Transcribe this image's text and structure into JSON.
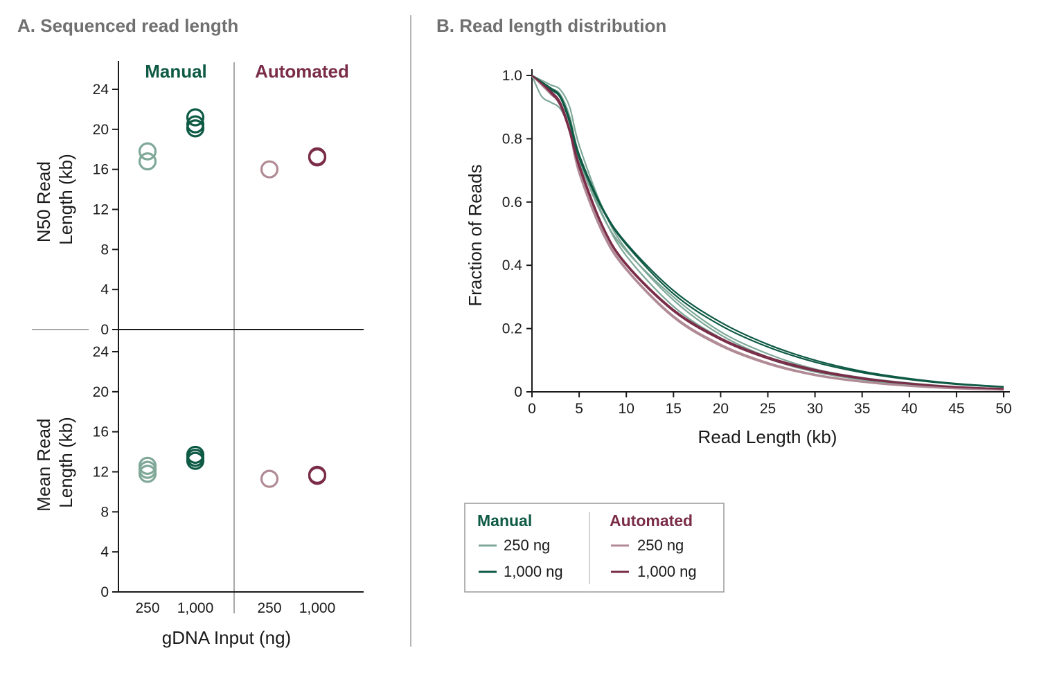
{
  "colors": {
    "manual_250": "#7fa898",
    "manual_1000": "#0e5a44",
    "auto_250": "#b08a94",
    "auto_1000": "#7a2c48",
    "manual_head": "#0e5a44",
    "auto_head": "#7a2c48",
    "panel_title": "#707070"
  },
  "chart_data": [
    {
      "type": "scatter",
      "panel_title": "A. Sequenced read length",
      "group_labels": [
        "Manual",
        "Automated"
      ],
      "x_tick_labels": [
        "250",
        "1,000",
        "250",
        "1,000"
      ],
      "xlabel": "gDNA Input (ng)",
      "subplots": [
        {
          "ylabel_lines": [
            "N50 Read",
            "Length (kb)"
          ],
          "ylim": [
            0,
            24
          ],
          "y_ticks": [
            "0",
            "4",
            "8",
            "12",
            "16",
            "20",
            "24"
          ],
          "series": [
            {
              "group": "Manual",
              "input": "250 ng",
              "x_index": 0,
              "color_key": "manual_250",
              "values": [
                17.8,
                16.8
              ]
            },
            {
              "group": "Manual",
              "input": "1,000 ng",
              "x_index": 1,
              "color_key": "manual_1000",
              "values": [
                21.2,
                20.5,
                20.1
              ]
            },
            {
              "group": "Automated",
              "input": "250 ng",
              "x_index": 2,
              "color_key": "auto_250",
              "values": [
                16.0
              ]
            },
            {
              "group": "Automated",
              "input": "1,000 ng",
              "x_index": 3,
              "color_key": "auto_1000",
              "values": [
                17.2,
                17.3
              ]
            }
          ]
        },
        {
          "ylabel_lines": [
            "Mean Read",
            "Length (kb)"
          ],
          "ylim": [
            0,
            24
          ],
          "y_ticks": [
            "0",
            "4",
            "8",
            "12",
            "16",
            "20",
            "24"
          ],
          "series": [
            {
              "group": "Manual",
              "input": "250 ng",
              "x_index": 0,
              "color_key": "manual_250",
              "values": [
                12.6,
                12.2,
                11.8
              ]
            },
            {
              "group": "Manual",
              "input": "1,000 ng",
              "x_index": 1,
              "color_key": "manual_1000",
              "values": [
                13.7,
                13.4,
                13.1
              ]
            },
            {
              "group": "Automated",
              "input": "250 ng",
              "x_index": 2,
              "color_key": "auto_250",
              "values": [
                11.3
              ]
            },
            {
              "group": "Automated",
              "input": "1,000 ng",
              "x_index": 3,
              "color_key": "auto_1000",
              "values": [
                11.7,
                11.6
              ]
            }
          ]
        }
      ]
    },
    {
      "type": "line",
      "panel_title": "B. Read length distribution",
      "xlabel": "Read Length (kb)",
      "ylabel": "Fraction of Reads",
      "xlim": [
        0,
        50
      ],
      "ylim": [
        0,
        1.0
      ],
      "x_ticks": [
        "0",
        "5",
        "10",
        "15",
        "20",
        "25",
        "30",
        "35",
        "40",
        "45",
        "50"
      ],
      "y_ticks": [
        "0",
        "0.2",
        "0.4",
        "0.6",
        "0.8",
        "1.0"
      ],
      "x": [
        0,
        1,
        2,
        3,
        4,
        5,
        7.5,
        10,
        15,
        20,
        25,
        30,
        35,
        40,
        45,
        50
      ],
      "series": [
        {
          "group": "Manual",
          "input": "250 ng",
          "color_key": "manual_250",
          "values": [
            1.0,
            0.935,
            0.915,
            0.895,
            0.83,
            0.73,
            0.555,
            0.445,
            0.3,
            0.19,
            0.12,
            0.072,
            0.045,
            0.028,
            0.016,
            0.009
          ]
        },
        {
          "group": "Manual",
          "input": "250 ng",
          "color_key": "manual_250",
          "values": [
            1.0,
            0.98,
            0.96,
            0.94,
            0.87,
            0.75,
            0.56,
            0.43,
            0.27,
            0.17,
            0.105,
            0.063,
            0.038,
            0.022,
            0.013,
            0.008
          ]
        },
        {
          "group": "Manual",
          "input": "250 ng",
          "color_key": "manual_250",
          "values": [
            1.0,
            0.985,
            0.97,
            0.955,
            0.9,
            0.78,
            0.58,
            0.45,
            0.29,
            0.18,
            0.11,
            0.067,
            0.041,
            0.025,
            0.015,
            0.009
          ]
        },
        {
          "group": "Manual",
          "input": "1,000 ng",
          "color_key": "manual_1000",
          "values": [
            1.0,
            0.98,
            0.96,
            0.935,
            0.86,
            0.75,
            0.58,
            0.47,
            0.32,
            0.22,
            0.15,
            0.1,
            0.065,
            0.042,
            0.026,
            0.016
          ]
        },
        {
          "group": "Manual",
          "input": "1,000 ng",
          "color_key": "manual_1000",
          "values": [
            1.0,
            0.98,
            0.955,
            0.93,
            0.85,
            0.74,
            0.575,
            0.465,
            0.31,
            0.21,
            0.142,
            0.094,
            0.061,
            0.039,
            0.024,
            0.015
          ]
        },
        {
          "group": "Automated",
          "input": "250 ng",
          "color_key": "auto_250",
          "values": [
            1.0,
            0.975,
            0.945,
            0.915,
            0.83,
            0.7,
            0.51,
            0.39,
            0.24,
            0.15,
            0.092,
            0.055,
            0.033,
            0.019,
            0.011,
            0.006
          ]
        },
        {
          "group": "Automated",
          "input": "250 ng",
          "color_key": "auto_250",
          "values": [
            1.0,
            0.97,
            0.94,
            0.91,
            0.82,
            0.69,
            0.5,
            0.385,
            0.235,
            0.145,
            0.088,
            0.052,
            0.031,
            0.018,
            0.01,
            0.006
          ]
        },
        {
          "group": "Automated",
          "input": "1,000 ng",
          "color_key": "auto_1000",
          "values": [
            1.0,
            0.975,
            0.945,
            0.905,
            0.82,
            0.71,
            0.52,
            0.4,
            0.255,
            0.165,
            0.105,
            0.066,
            0.041,
            0.025,
            0.015,
            0.009
          ]
        },
        {
          "group": "Automated",
          "input": "1,000 ng",
          "color_key": "auto_1000",
          "values": [
            1.0,
            0.975,
            0.95,
            0.915,
            0.83,
            0.72,
            0.525,
            0.405,
            0.26,
            0.17,
            0.11,
            0.07,
            0.044,
            0.027,
            0.016,
            0.01
          ]
        }
      ],
      "legend": {
        "placement": "bottom",
        "groups": [
          {
            "title": "Manual",
            "color_key": "manual_head",
            "entries": [
              {
                "label": "250 ng",
                "color_key": "manual_250"
              },
              {
                "label": "1,000 ng",
                "color_key": "manual_1000"
              }
            ]
          },
          {
            "title": "Automated",
            "color_key": "auto_head",
            "entries": [
              {
                "label": "250 ng",
                "color_key": "auto_250"
              },
              {
                "label": "1,000 ng",
                "color_key": "auto_1000"
              }
            ]
          }
        ]
      }
    }
  ]
}
